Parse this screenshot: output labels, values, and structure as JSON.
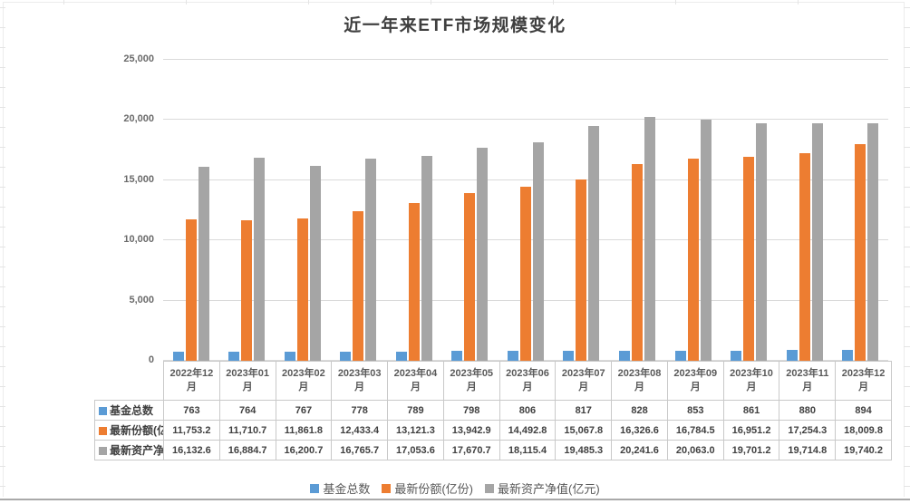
{
  "chart_data": {
    "type": "bar",
    "title": "近一年来ETF市场规模变化",
    "categories": [
      "2022年12月",
      "2023年01月",
      "2023年02月",
      "2023年03月",
      "2023年04月",
      "2023年05月",
      "2023年06月",
      "2023年07月",
      "2023年08月",
      "2023年09月",
      "2023年10月",
      "2023年11月",
      "2023年12月"
    ],
    "series": [
      {
        "name": "基金总数",
        "color": "#5B9BD5",
        "decimals": 0,
        "values": [
          763,
          764,
          767,
          778,
          789,
          798,
          806,
          817,
          828,
          853,
          861,
          880,
          894
        ]
      },
      {
        "name": "最新份额(亿份)",
        "color": "#ED7D31",
        "decimals": 1,
        "values": [
          11753.2,
          11710.7,
          11861.8,
          12433.4,
          13121.3,
          13942.9,
          14492.8,
          15067.8,
          16326.6,
          16784.5,
          16951.2,
          17254.3,
          18009.8
        ]
      },
      {
        "name": "最新资产净值(亿元)",
        "color": "#A5A5A5",
        "decimals": 1,
        "values": [
          16132.6,
          16884.7,
          16200.7,
          16765.7,
          17053.6,
          17670.7,
          18115.4,
          19485.3,
          20241.6,
          20063.0,
          19701.2,
          19714.8,
          19740.2
        ]
      }
    ],
    "ylim": [
      0,
      25000
    ],
    "y_ticks": [
      0,
      5000,
      10000,
      15000,
      20000,
      25000
    ],
    "grid": true,
    "legend_position": "bottom",
    "data_table_shown": true
  }
}
